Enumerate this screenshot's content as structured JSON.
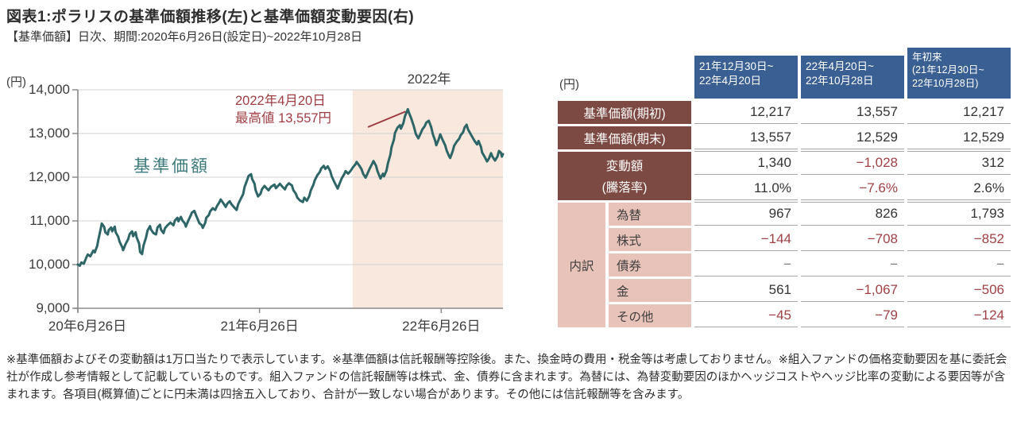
{
  "title": "図表1:ポラリスの基準価額推移(左)と基準価額変動要因(右)",
  "chart": {
    "subtitle": "【基準価額】日次、期間:2020年6月26日(設定日)~2022年10月28日",
    "unit_label": "(円)",
    "series_label": "基準価額",
    "shade_label": "2022年",
    "annotation_line1": "2022年4月20日",
    "annotation_line2": "最高値 13,557円"
  },
  "chart_data": {
    "type": "line",
    "title": "ポラリスの基準価額推移",
    "ylabel": "(円)",
    "ylim": [
      9000,
      14000
    ],
    "ytick_labels": [
      "9,000",
      "10,000",
      "11,000",
      "12,000",
      "13,000",
      "14,000"
    ],
    "ytick_values": [
      9000,
      10000,
      11000,
      12000,
      13000,
      14000
    ],
    "xtick_labels": [
      "20年6月26日",
      "21年6月26日",
      "22年6月26日"
    ],
    "xtick_dates": [
      "2020-06-26",
      "2021-06-26",
      "2022-06-26"
    ],
    "x_range": [
      "2020-06-26",
      "2022-10-28"
    ],
    "grid": true,
    "shade": {
      "start": "2021-12-30",
      "end": "2022-10-28",
      "label": "2022年",
      "color": "#f8e8dd"
    },
    "annotation": {
      "date": "2022-04-20",
      "value": 13557,
      "lines": [
        "2022年4月20日",
        "最高値 13,557円"
      ]
    },
    "line_color": "#2e6668",
    "series": [
      {
        "name": "基準価額",
        "points": [
          [
            "2020-06-26",
            10000
          ],
          [
            "2020-06-30",
            9975
          ],
          [
            "2020-07-03",
            10050
          ],
          [
            "2020-07-08",
            10020
          ],
          [
            "2020-07-13",
            10160
          ],
          [
            "2020-07-16",
            10230
          ],
          [
            "2020-07-21",
            10190
          ],
          [
            "2020-07-27",
            10320
          ],
          [
            "2020-07-30",
            10280
          ],
          [
            "2020-08-04",
            10430
          ],
          [
            "2020-08-06",
            10560
          ],
          [
            "2020-08-11",
            10820
          ],
          [
            "2020-08-13",
            10940
          ],
          [
            "2020-08-18",
            10860
          ],
          [
            "2020-08-20",
            10740
          ],
          [
            "2020-08-25",
            10690
          ],
          [
            "2020-08-27",
            10790
          ],
          [
            "2020-09-01",
            10850
          ],
          [
            "2020-09-03",
            10760
          ],
          [
            "2020-09-08",
            10870
          ],
          [
            "2020-09-10",
            10740
          ],
          [
            "2020-09-15",
            10640
          ],
          [
            "2020-09-18",
            10520
          ],
          [
            "2020-09-23",
            10400
          ],
          [
            "2020-09-25",
            10330
          ],
          [
            "2020-09-30",
            10470
          ],
          [
            "2020-10-05",
            10580
          ],
          [
            "2020-10-08",
            10700
          ],
          [
            "2020-10-13",
            10760
          ],
          [
            "2020-10-15",
            10650
          ],
          [
            "2020-10-20",
            10740
          ],
          [
            "2020-10-22",
            10630
          ],
          [
            "2020-10-27",
            10480
          ],
          [
            "2020-10-29",
            10290
          ],
          [
            "2020-11-02",
            10240
          ],
          [
            "2020-11-05",
            10440
          ],
          [
            "2020-11-10",
            10620
          ],
          [
            "2020-11-13",
            10780
          ],
          [
            "2020-11-18",
            10880
          ],
          [
            "2020-11-20",
            10800
          ],
          [
            "2020-11-25",
            10720
          ],
          [
            "2020-11-30",
            10690
          ],
          [
            "2020-12-03",
            10850
          ],
          [
            "2020-12-08",
            10910
          ],
          [
            "2020-12-10",
            10800
          ],
          [
            "2020-12-15",
            10720
          ],
          [
            "2020-12-18",
            10830
          ],
          [
            "2020-12-23",
            10900
          ],
          [
            "2020-12-29",
            10960
          ],
          [
            "2021-01-04",
            10900
          ],
          [
            "2021-01-07",
            11010
          ],
          [
            "2021-01-12",
            11070
          ],
          [
            "2021-01-14",
            10990
          ],
          [
            "2021-01-19",
            11090
          ],
          [
            "2021-01-22",
            11010
          ],
          [
            "2021-01-27",
            10940
          ],
          [
            "2021-01-29",
            10870
          ],
          [
            "2021-02-03",
            11010
          ],
          [
            "2021-02-08",
            11130
          ],
          [
            "2021-02-10",
            11190
          ],
          [
            "2021-02-15",
            11230
          ],
          [
            "2021-02-18",
            11140
          ],
          [
            "2021-02-22",
            11030
          ],
          [
            "2021-02-25",
            10950
          ],
          [
            "2021-03-02",
            10900
          ],
          [
            "2021-03-04",
            10840
          ],
          [
            "2021-03-09",
            10960
          ],
          [
            "2021-03-11",
            11070
          ],
          [
            "2021-03-16",
            11130
          ],
          [
            "2021-03-19",
            11220
          ],
          [
            "2021-03-24",
            11290
          ],
          [
            "2021-03-29",
            11250
          ],
          [
            "2021-04-01",
            11330
          ],
          [
            "2021-04-06",
            11420
          ],
          [
            "2021-04-09",
            11490
          ],
          [
            "2021-04-14",
            11410
          ],
          [
            "2021-04-19",
            11320
          ],
          [
            "2021-04-22",
            11390
          ],
          [
            "2021-04-27",
            11450
          ],
          [
            "2021-04-30",
            11390
          ],
          [
            "2021-05-06",
            11310
          ],
          [
            "2021-05-11",
            11250
          ],
          [
            "2021-05-14",
            11380
          ],
          [
            "2021-05-19",
            11500
          ],
          [
            "2021-05-24",
            11610
          ],
          [
            "2021-05-27",
            11780
          ],
          [
            "2021-06-01",
            11930
          ],
          [
            "2021-06-04",
            12030
          ],
          [
            "2021-06-09",
            12070
          ],
          [
            "2021-06-11",
            11960
          ],
          [
            "2021-06-16",
            11850
          ],
          [
            "2021-06-18",
            11710
          ],
          [
            "2021-06-23",
            11560
          ],
          [
            "2021-06-28",
            11620
          ],
          [
            "2021-07-01",
            11730
          ],
          [
            "2021-07-06",
            11800
          ],
          [
            "2021-07-09",
            11760
          ],
          [
            "2021-07-14",
            11700
          ],
          [
            "2021-07-19",
            11780
          ],
          [
            "2021-07-26",
            11830
          ],
          [
            "2021-07-29",
            11750
          ],
          [
            "2021-08-03",
            11810
          ],
          [
            "2021-08-06",
            11850
          ],
          [
            "2021-08-11",
            11780
          ],
          [
            "2021-08-16",
            11720
          ],
          [
            "2021-08-19",
            11800
          ],
          [
            "2021-08-24",
            11860
          ],
          [
            "2021-08-30",
            11810
          ],
          [
            "2021-09-02",
            11700
          ],
          [
            "2021-09-07",
            11620
          ],
          [
            "2021-09-10",
            11530
          ],
          [
            "2021-09-15",
            11470
          ],
          [
            "2021-09-21",
            11430
          ],
          [
            "2021-09-24",
            11530
          ],
          [
            "2021-09-29",
            11460
          ],
          [
            "2021-10-04",
            11570
          ],
          [
            "2021-10-07",
            11700
          ],
          [
            "2021-10-12",
            11820
          ],
          [
            "2021-10-15",
            11930
          ],
          [
            "2021-10-20",
            12040
          ],
          [
            "2021-10-25",
            12120
          ],
          [
            "2021-10-28",
            12200
          ],
          [
            "2021-11-02",
            12260
          ],
          [
            "2021-11-05",
            12190
          ],
          [
            "2021-11-10",
            12250
          ],
          [
            "2021-11-15",
            12140
          ],
          [
            "2021-11-18",
            12020
          ],
          [
            "2021-11-24",
            11870
          ],
          [
            "2021-11-30",
            11740
          ],
          [
            "2021-12-03",
            11830
          ],
          [
            "2021-12-08",
            11970
          ],
          [
            "2021-12-13",
            12070
          ],
          [
            "2021-12-16",
            12140
          ],
          [
            "2021-12-21",
            12080
          ],
          [
            "2021-12-27",
            12160
          ],
          [
            "2021-12-30",
            12217
          ],
          [
            "2022-01-05",
            12300
          ],
          [
            "2022-01-07",
            12350
          ],
          [
            "2022-01-12",
            12270
          ],
          [
            "2022-01-17",
            12180
          ],
          [
            "2022-01-20",
            12080
          ],
          [
            "2022-01-25",
            11990
          ],
          [
            "2022-01-28",
            12060
          ],
          [
            "2022-02-02",
            12190
          ],
          [
            "2022-02-07",
            12300
          ],
          [
            "2022-02-10",
            12370
          ],
          [
            "2022-02-15",
            12260
          ],
          [
            "2022-02-18",
            12140
          ],
          [
            "2022-02-24",
            11970
          ],
          [
            "2022-03-01",
            12080
          ],
          [
            "2022-03-03",
            12020
          ],
          [
            "2022-03-08",
            12150
          ],
          [
            "2022-03-11",
            12320
          ],
          [
            "2022-03-16",
            12520
          ],
          [
            "2022-03-18",
            12680
          ],
          [
            "2022-03-23",
            12860
          ],
          [
            "2022-03-25",
            13010
          ],
          [
            "2022-03-30",
            13130
          ],
          [
            "2022-04-04",
            13190
          ],
          [
            "2022-04-06",
            13110
          ],
          [
            "2022-04-11",
            13240
          ],
          [
            "2022-04-14",
            13390
          ],
          [
            "2022-04-20",
            13557
          ],
          [
            "2022-04-22",
            13480
          ],
          [
            "2022-04-27",
            13340
          ],
          [
            "2022-05-02",
            13160
          ],
          [
            "2022-05-06",
            12990
          ],
          [
            "2022-05-11",
            12890
          ],
          [
            "2022-05-16",
            13010
          ],
          [
            "2022-05-19",
            13090
          ],
          [
            "2022-05-24",
            13170
          ],
          [
            "2022-05-27",
            13250
          ],
          [
            "2022-06-01",
            13290
          ],
          [
            "2022-06-06",
            13140
          ],
          [
            "2022-06-09",
            12990
          ],
          [
            "2022-06-14",
            12830
          ],
          [
            "2022-06-16",
            12730
          ],
          [
            "2022-06-21",
            12870
          ],
          [
            "2022-06-24",
            12980
          ],
          [
            "2022-06-29",
            12850
          ],
          [
            "2022-07-04",
            12730
          ],
          [
            "2022-07-07",
            12610
          ],
          [
            "2022-07-12",
            12480
          ],
          [
            "2022-07-14",
            12440
          ],
          [
            "2022-07-19",
            12590
          ],
          [
            "2022-07-22",
            12720
          ],
          [
            "2022-07-27",
            12810
          ],
          [
            "2022-08-01",
            12880
          ],
          [
            "2022-08-04",
            12960
          ],
          [
            "2022-08-09",
            13030
          ],
          [
            "2022-08-12",
            13140
          ],
          [
            "2022-08-16",
            13200
          ],
          [
            "2022-08-19",
            13090
          ],
          [
            "2022-08-24",
            12990
          ],
          [
            "2022-08-29",
            12890
          ],
          [
            "2022-09-01",
            12830
          ],
          [
            "2022-09-06",
            12750
          ],
          [
            "2022-09-09",
            12830
          ],
          [
            "2022-09-14",
            12690
          ],
          [
            "2022-09-16",
            12570
          ],
          [
            "2022-09-21",
            12470
          ],
          [
            "2022-09-26",
            12360
          ],
          [
            "2022-09-30",
            12430
          ],
          [
            "2022-10-04",
            12550
          ],
          [
            "2022-10-07",
            12470
          ],
          [
            "2022-10-12",
            12380
          ],
          [
            "2022-10-17",
            12470
          ],
          [
            "2022-10-20",
            12600
          ],
          [
            "2022-10-24",
            12560
          ],
          [
            "2022-10-26",
            12470
          ],
          [
            "2022-10-28",
            12529
          ]
        ]
      }
    ]
  },
  "table": {
    "unit_label": "(円)",
    "col_headers": [
      "21年12月30日~\n22年4月20日",
      "22年4月20日~\n22年10月28日",
      "年初来\n(21年12月30日~\n22年10月28日)"
    ],
    "breakdown_label": "内訳",
    "rows": [
      {
        "label": "基準価額(期初)",
        "values": [
          "12,217",
          "13,557",
          "12,217"
        ]
      },
      {
        "label": "基準価額(期末)",
        "values": [
          "13,557",
          "12,529",
          "12,529"
        ]
      },
      {
        "label": "変動額",
        "values": [
          "1,340",
          "−1,028",
          "312"
        ]
      },
      {
        "label": "(騰落率)",
        "values": [
          "11.0%",
          "−7.6%",
          "2.6%"
        ]
      },
      {
        "label": "為替",
        "values": [
          "967",
          "826",
          "1,793"
        ]
      },
      {
        "label": "株式",
        "values": [
          "−144",
          "−708",
          "−852"
        ]
      },
      {
        "label": "債券",
        "values": [
          "−",
          "−",
          "−"
        ]
      },
      {
        "label": "金",
        "values": [
          "561",
          "−1,067",
          "−506"
        ]
      },
      {
        "label": "その他",
        "values": [
          "−45",
          "−79",
          "−124"
        ]
      }
    ]
  },
  "footnote": "※基準価額およびその変動額は1万口当たりで表示しています。※基準価額は信託報酬等控除後。また、換金時の費用・税金等は考慮しておりません。※組入ファンドの価格変動要因を基に委託会社が作成し参考情報として記載しているものです。組入ファンドの信託報酬等は株式、金、債券に含まれます。為替には、為替変動要因のほかヘッジコストやヘッジ比率の変動による要因等が含まれます。各項目(概算値)ごとに円未満は四捨五入しており、合計が一致しない場合があります。その他には信託報酬等を含みます。"
}
